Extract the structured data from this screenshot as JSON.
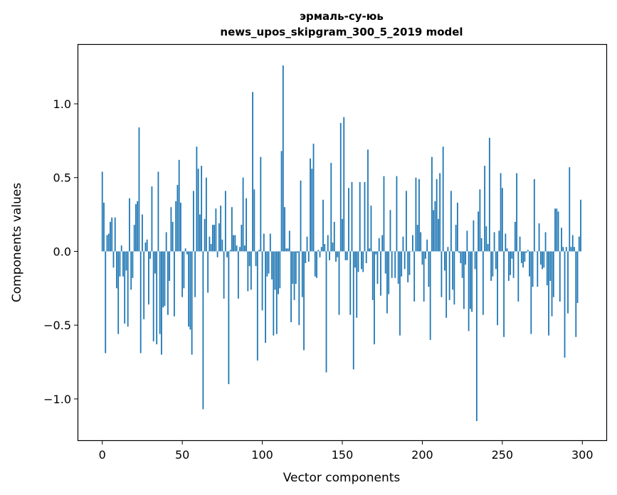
{
  "chart_data": {
    "type": "bar",
    "title": "эрмаль-су-юь",
    "subtitle": "news_upos_skipgram_300_5_2019 model",
    "xlabel": "Vector components",
    "ylabel": "Components values",
    "xlim": [
      -15,
      315
    ],
    "ylim": [
      -1.28,
      1.4
    ],
    "xticks": [
      0,
      50,
      100,
      150,
      200,
      250,
      300
    ],
    "yticks": [
      -1.0,
      -0.5,
      0.0,
      0.5,
      1.0
    ],
    "ytick_labels": [
      "−1.0",
      "−0.5",
      "0.0",
      "0.5",
      "1.0"
    ],
    "grid": false,
    "legend": "none",
    "bar_color": "#1f77b4",
    "values": [
      0.54,
      0.33,
      -0.69,
      0.11,
      0.12,
      0.2,
      0.23,
      -0.11,
      0.23,
      -0.25,
      -0.56,
      -0.17,
      0.04,
      -0.17,
      -0.49,
      -0.13,
      -0.51,
      0.36,
      -0.26,
      -0.18,
      0.18,
      0.32,
      0.34,
      0.84,
      -0.69,
      0.25,
      -0.46,
      0.06,
      0.08,
      -0.36,
      -0.05,
      0.44,
      -0.61,
      -0.15,
      -0.63,
      0.54,
      -0.56,
      -0.7,
      -0.38,
      -0.37,
      0.13,
      -0.43,
      -0.2,
      0.3,
      0.2,
      -0.44,
      0.34,
      0.45,
      0.62,
      0.33,
      -0.31,
      -0.25,
      0.02,
      -0.02,
      -0.51,
      -0.53,
      -0.7,
      0.41,
      -0.31,
      0.71,
      0.56,
      0.25,
      0.58,
      -1.07,
      0.22,
      0.5,
      -0.28,
      0.1,
      0.05,
      0.18,
      0.18,
      0.29,
      -0.04,
      0.19,
      0.31,
      0.08,
      -0.32,
      0.41,
      -0.04,
      -0.9,
      0.01,
      0.3,
      0.11,
      0.11,
      0.04,
      -0.32,
      0.03,
      0.18,
      0.5,
      0.04,
      0.36,
      -0.27,
      -0.1,
      -0.26,
      1.08,
      0.42,
      -0.1,
      -0.74,
      0.01,
      0.64,
      -0.4,
      0.12,
      -0.62,
      -0.17,
      -0.15,
      0.12,
      -0.19,
      -0.57,
      -0.26,
      -0.56,
      -0.29,
      -0.25,
      0.68,
      1.26,
      0.3,
      0.02,
      0.02,
      0.14,
      -0.48,
      -0.22,
      -0.33,
      -0.22,
      -0.01,
      -0.5,
      0.48,
      -0.31,
      -0.67,
      -0.08,
      0.1,
      -0.07,
      0.63,
      0.56,
      0.73,
      -0.17,
      -0.18,
      0.01,
      -0.04,
      0.03,
      0.35,
      0.05,
      -0.82,
      0.11,
      -0.06,
      0.6,
      0.06,
      0.2,
      -0.07,
      -0.04,
      -0.43,
      0.87,
      0.22,
      0.91,
      -0.06,
      -0.06,
      0.43,
      -0.43,
      0.47,
      -0.8,
      -0.11,
      -0.45,
      -0.14,
      0.47,
      -0.12,
      -0.14,
      0.47,
      -0.08,
      0.69,
      0.02,
      0.31,
      -0.33,
      -0.63,
      -0.02,
      -0.22,
      0.09,
      -0.3,
      0.11,
      0.51,
      -0.15,
      -0.42,
      -0.29,
      0.28,
      -0.18,
      0.0,
      -0.18,
      0.51,
      -0.22,
      -0.57,
      -0.17,
      0.1,
      -0.12,
      0.41,
      -0.21,
      -0.16,
      0.0,
      0.11,
      -0.34,
      0.5,
      0.18,
      0.49,
      0.13,
      -0.09,
      -0.34,
      -0.05,
      0.08,
      -0.24,
      -0.6,
      0.64,
      0.28,
      0.34,
      0.49,
      0.22,
      0.53,
      -0.31,
      0.71,
      -0.13,
      -0.45,
      0.03,
      -0.33,
      0.41,
      -0.26,
      -0.36,
      0.18,
      0.33,
      -0.01,
      -0.08,
      -0.18,
      -0.39,
      -0.09,
      0.14,
      -0.54,
      -0.39,
      -0.41,
      0.21,
      -0.12,
      -1.15,
      0.27,
      0.42,
      0.09,
      -0.43,
      0.58,
      0.17,
      0.05,
      0.77,
      -0.2,
      -0.17,
      0.13,
      -0.12,
      -0.5,
      0.14,
      0.53,
      0.43,
      -0.58,
      0.12,
      0.02,
      -0.2,
      -0.16,
      -0.05,
      -0.18,
      0.2,
      0.53,
      -0.34,
      0.1,
      -0.08,
      -0.11,
      -0.07,
      -0.01,
      0.01,
      -0.17,
      -0.56,
      -0.24,
      0.49,
      0.0,
      -0.24,
      0.19,
      -0.09,
      -0.12,
      -0.11,
      0.13,
      -0.23,
      -0.57,
      -0.2,
      -0.44,
      -0.31,
      0.29,
      0.29,
      0.27,
      -0.34,
      0.16,
      0.03,
      -0.72,
      0.03,
      -0.42,
      0.57,
      0.03,
      0.11,
      0.03,
      -0.58,
      -0.35,
      0.1,
      0.35
    ]
  }
}
